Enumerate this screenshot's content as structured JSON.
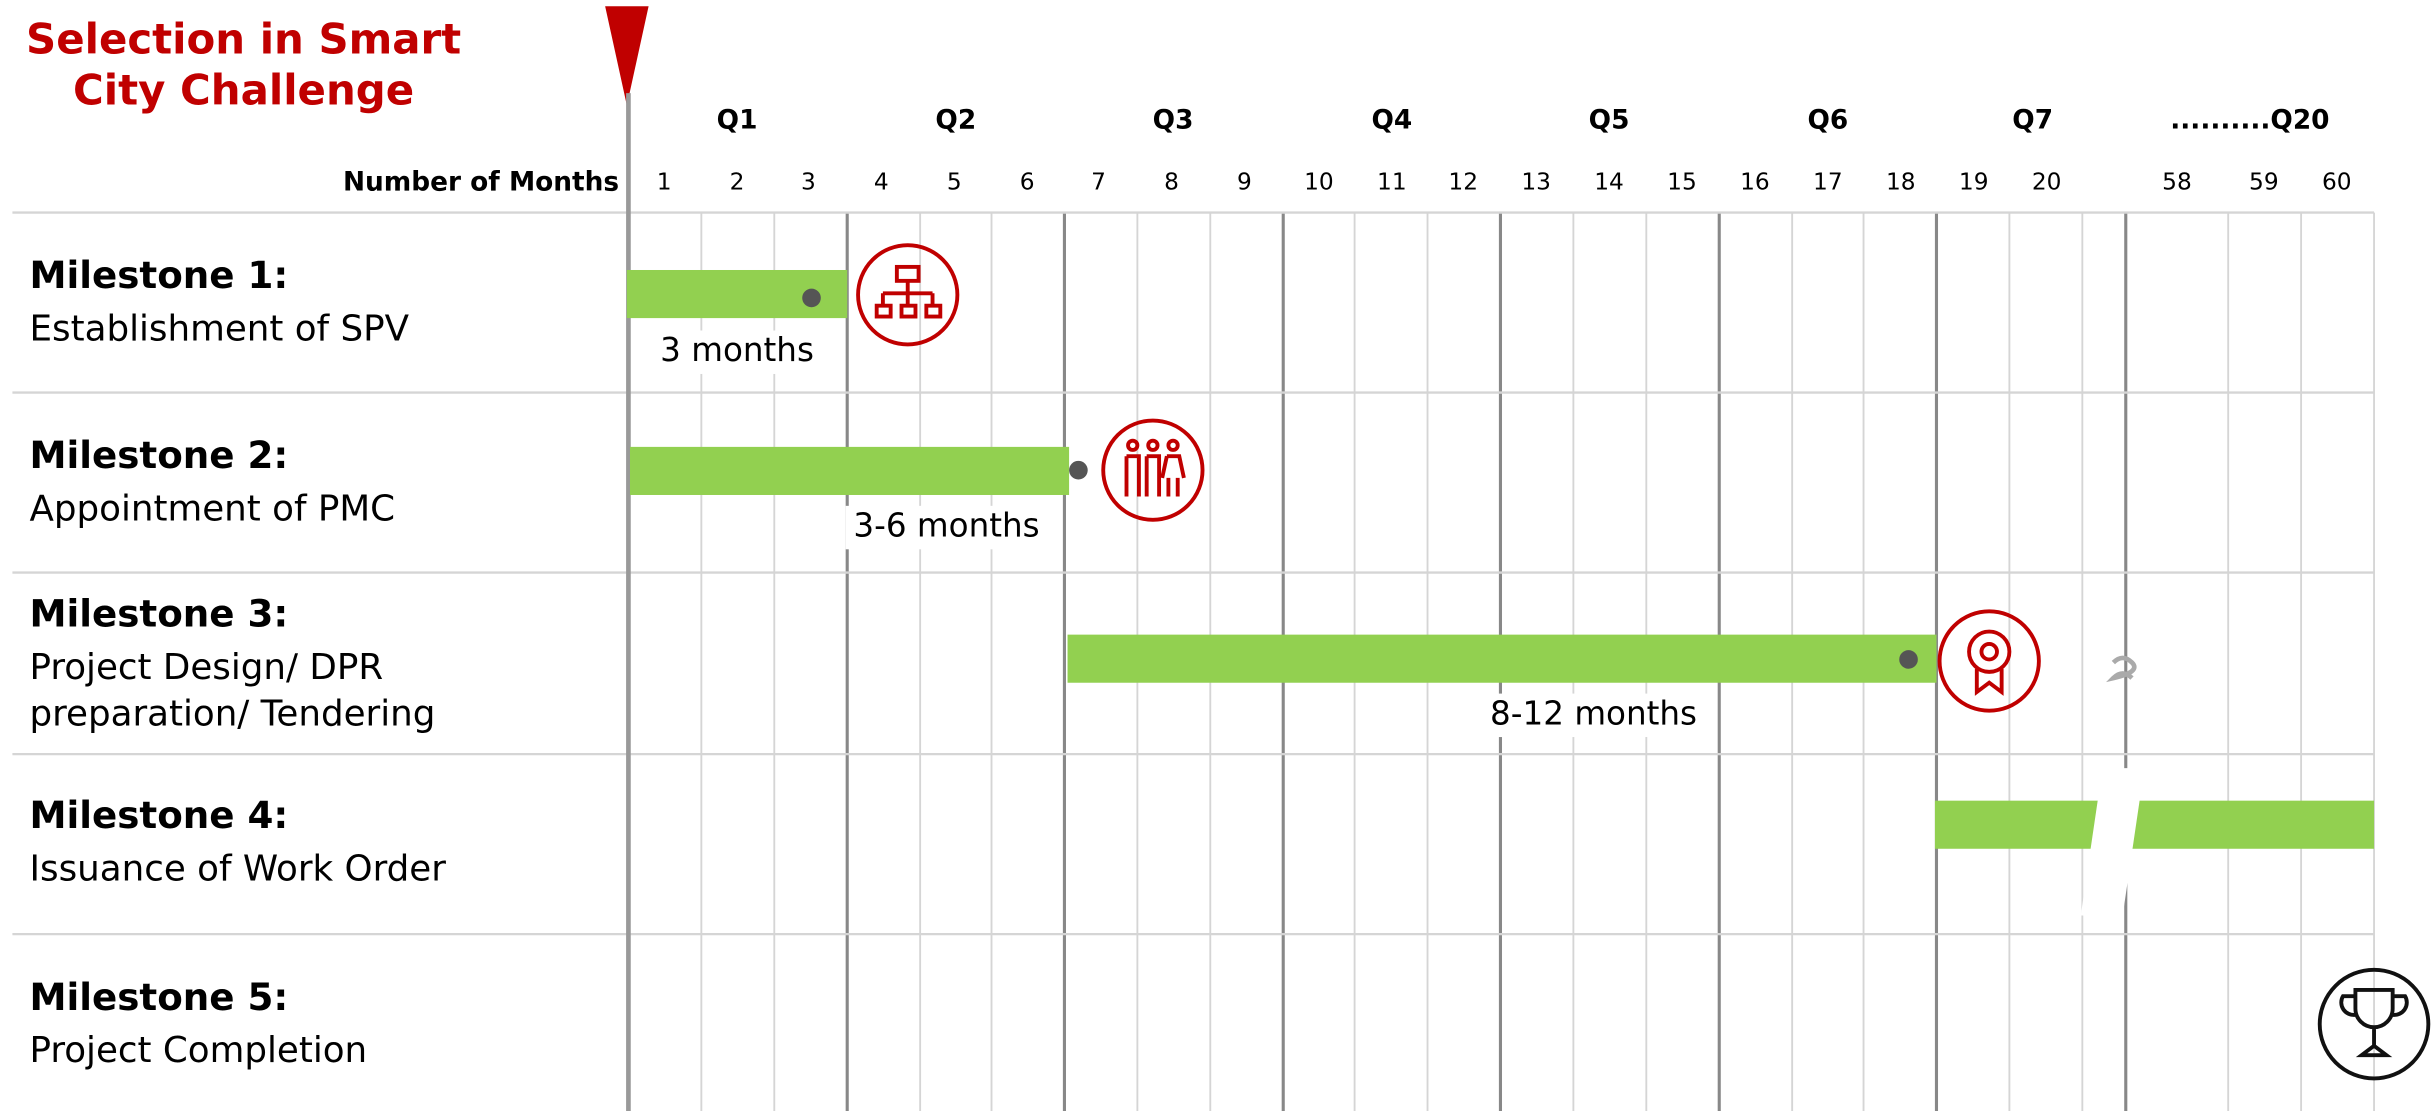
{
  "title": [
    "Selection in Smart",
    "City Challenge"
  ],
  "header": {
    "quarters": [
      "Q1",
      "Q2",
      "Q3",
      "Q4",
      "Q5",
      "Q6",
      "Q7",
      "..........Q20"
    ],
    "months_label": "Number of Months",
    "months": [
      "1",
      "2",
      "3",
      "4",
      "5",
      "6",
      "7",
      "8",
      "9",
      "10",
      "11",
      "12",
      "13",
      "14",
      "15",
      "16",
      "17",
      "18",
      "19",
      "20",
      "58",
      "59",
      "60"
    ]
  },
  "milestones": [
    {
      "title": "Milestone 1:",
      "description": [
        "Establishment of SPV"
      ],
      "duration": "3 months"
    },
    {
      "title": "Milestone 2:",
      "description": [
        "Appointment of PMC"
      ],
      "duration": "3-6 months"
    },
    {
      "title": "Milestone 3:",
      "description": [
        "Project Design/ DPR",
        "preparation/ Tendering"
      ],
      "duration": "8-12 months"
    },
    {
      "title": "Milestone 4:",
      "description": [
        "Issuance of Work Order"
      ]
    },
    {
      "title": "Milestone 5:",
      "description": [
        "Project Completion"
      ]
    }
  ]
}
